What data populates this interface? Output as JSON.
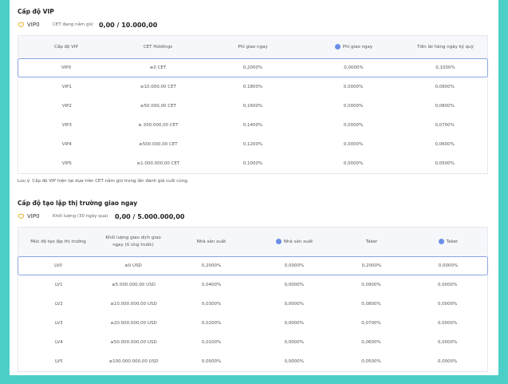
{
  "vip": {
    "title": "Cấp độ VIP",
    "level": "VIP0",
    "holding_label": "CET đang nắm giữ",
    "holding_value": "0,00 / 10.000,00",
    "table": {
      "headers": [
        "Cấp độ VIP",
        "CET Holdings",
        "Phí giao ngay",
        "Phí giao ngay",
        "Tiền lãi hàng ngày ký quỹ"
      ],
      "rows": [
        [
          "VIP0",
          "≥0 CET",
          "0,2000%",
          "0,0000%",
          "0,1000%"
        ],
        [
          "VIP1",
          "≥10.000,00 CET",
          "0,1800%",
          "0,0000%",
          "0,0900%"
        ],
        [
          "VIP2",
          "≥50.000,00 CET",
          "0,1600%",
          "0,0000%",
          "0,0800%"
        ],
        [
          "VIP3",
          "≥ 200.000,00 CET",
          "0,1400%",
          "0,0000%",
          "0,0700%"
        ],
        [
          "VIP4",
          "≥500.000,00 CET",
          "0,1200%",
          "0,0000%",
          "0,0600%"
        ],
        [
          "VIP5",
          "≥1.000.000,00 CET",
          "0,1000%",
          "0,0000%",
          "0,0500%"
        ]
      ]
    }
  },
  "note": "Lưu ý: Cấp độ VIP hiện tại dựa trên CET nắm giữ trong lần đánh giá cuối cùng.",
  "market_maker": {
    "title": "Cấp độ tạo lập thị trường giao ngay",
    "level": "VIP0",
    "volume_label": "Khối lượng (30 ngày qua)",
    "volume_value": "0,00 / 5.000.000,00",
    "table": {
      "headers": [
        "Mức độ tạo lập thị trường",
        "Khối lượng giao dịch giao ngay (tỉ ứng trước)",
        "Nhà sản xuất",
        "Nhà sản xuất",
        "Taker",
        "Taker"
      ],
      "rows": [
        [
          "LV0",
          "≥0 USD",
          "0,2000%",
          "0,0000%",
          "0,2000%",
          "0,0000%"
        ],
        [
          "LV1",
          "≥5.000.000,00 USD",
          "0,0400%",
          "0,0000%",
          "0,0900%",
          "0,0000%"
        ],
        [
          "LV2",
          "≥10.000.000,00 USD",
          "0,0300%",
          "0,0000%",
          "0,0800%",
          "0,0000%"
        ],
        [
          "LV3",
          "≥20.000.000,00 USD",
          "0,0200%",
          "0,0000%",
          "0,0700%",
          "0,0000%"
        ],
        [
          "LV4",
          "≥50.000.000,00 USD",
          "0,0100%",
          "0,0000%",
          "0,0600%",
          "0,0000%"
        ],
        [
          "LV5",
          "≥100.000.000,00 USD",
          "0,0000%",
          "0,0000%",
          "0,0500%",
          "0,0000%"
        ]
      ]
    }
  }
}
